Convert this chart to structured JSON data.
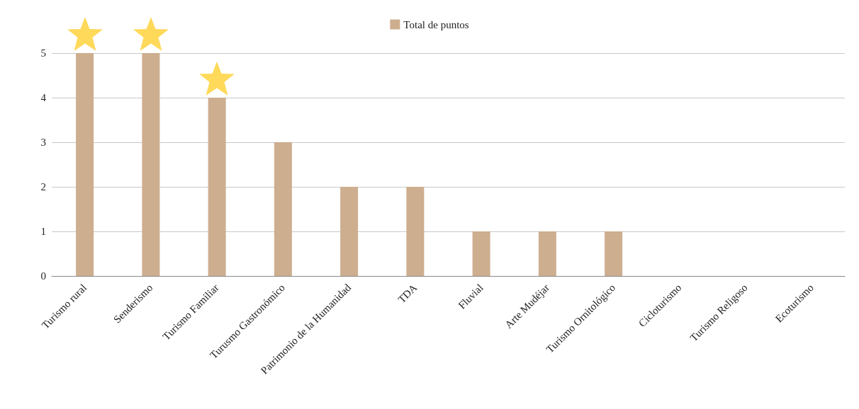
{
  "chart_data": {
    "type": "bar",
    "categories": [
      "Turismo rural",
      "Senderismo",
      "Turismo Familiar",
      "Turusmo Gastronómico",
      "Patrimonio de la Humanidad",
      "TDA",
      "Fluvial",
      "Arte Mudéjar",
      "Turismo Ornitológico",
      "Cicloturismo",
      "Turismo Religoso",
      "Ecoturismo"
    ],
    "series": [
      {
        "name": "Total de puntos",
        "color": "#cdae8f",
        "values": [
          5,
          5,
          4,
          3,
          2,
          2,
          1,
          1,
          1,
          0,
          0,
          0
        ]
      }
    ],
    "ylim": [
      0,
      5
    ],
    "yticks": [
      0,
      1,
      2,
      3,
      4,
      5
    ],
    "grid": "y",
    "legend": "top"
  }
}
